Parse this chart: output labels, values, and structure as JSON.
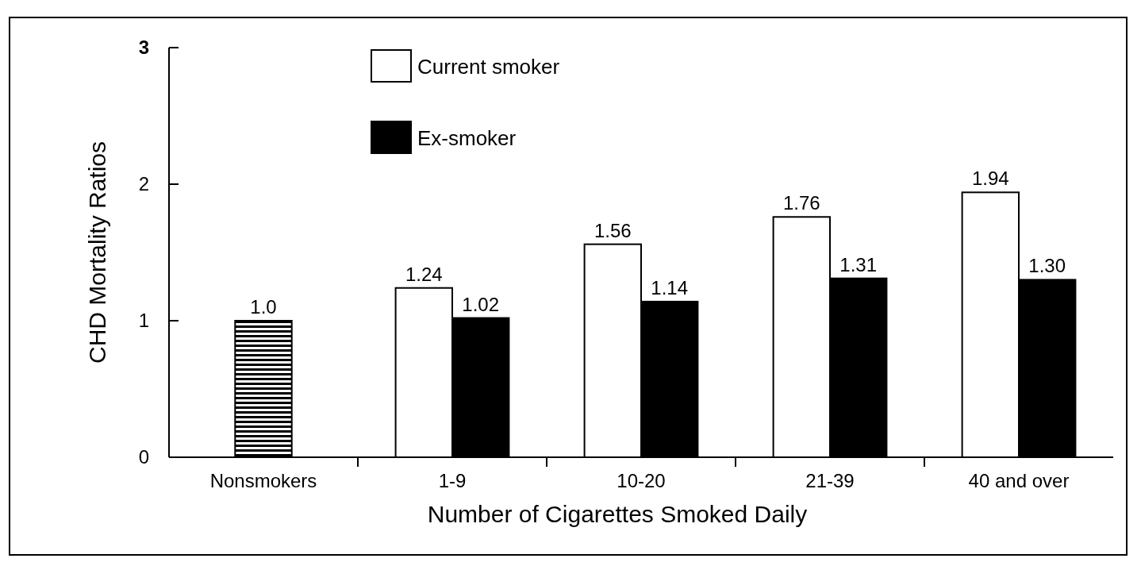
{
  "chart_data": {
    "type": "bar",
    "xlabel": "Number of Cigarettes Smoked Daily",
    "ylabel": "CHD Mortality Ratios",
    "categories": [
      "Nonsmokers",
      "1-9",
      "10-20",
      "21-39",
      "40 and over"
    ],
    "series": [
      {
        "color": "#000000",
        "values": [
          1.0,
          null,
          null,
          null,
          null
        ],
        "value_labels": [
          "1.0",
          null,
          null,
          null,
          null
        ]
      },
      {
        "name": "Current smoker",
        "color": "#ffffff",
        "values": [
          null,
          1.24,
          1.56,
          1.76,
          1.94
        ],
        "value_labels": [
          null,
          "1.24",
          "1.56",
          "1.76",
          "1.94"
        ]
      },
      {
        "name": "Ex-smoker",
        "color": "#000000",
        "values": [
          null,
          1.02,
          1.14,
          1.31,
          1.3
        ],
        "value_labels": [
          null,
          "1.02",
          "1.14",
          "1.31",
          "1.30"
        ]
      }
    ],
    "ylim": [
      0,
      3
    ],
    "yticks": [
      0,
      1,
      2,
      3
    ],
    "legend": "top left",
    "grid": false
  }
}
